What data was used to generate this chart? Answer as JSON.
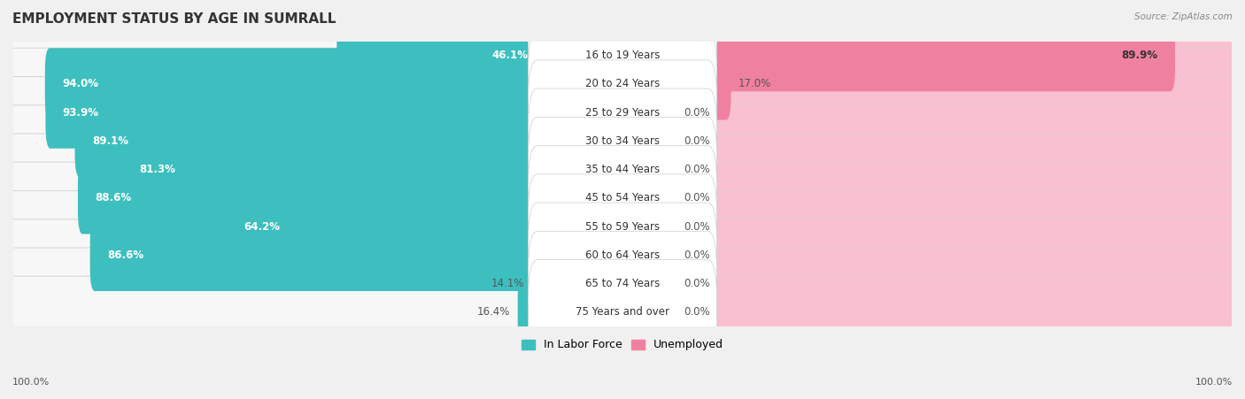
{
  "title": "EMPLOYMENT STATUS BY AGE IN SUMRALL",
  "source": "Source: ZipAtlas.com",
  "categories": [
    "16 to 19 Years",
    "20 to 24 Years",
    "25 to 29 Years",
    "30 to 34 Years",
    "35 to 44 Years",
    "45 to 54 Years",
    "55 to 59 Years",
    "60 to 64 Years",
    "65 to 74 Years",
    "75 Years and over"
  ],
  "labor_force": [
    46.1,
    94.0,
    93.9,
    89.1,
    81.3,
    88.6,
    64.2,
    86.6,
    14.1,
    16.4
  ],
  "unemployed": [
    89.9,
    17.0,
    0.0,
    0.0,
    0.0,
    0.0,
    0.0,
    0.0,
    0.0,
    0.0
  ],
  "labor_force_color": "#3DBFBF",
  "unemployed_color": "#F080A0",
  "unemployed_bg_color": "#F8C0D0",
  "row_bg_color": "#efefef",
  "row_inner_color": "#fafafa",
  "title_fontsize": 11,
  "label_fontsize": 8.5,
  "cat_fontsize": 8.5,
  "legend_fontsize": 9,
  "axis_label_fontsize": 8,
  "max_val": 100.0,
  "left_label": "100.0%",
  "right_label": "100.0%",
  "min_unemp_display": 8.0
}
